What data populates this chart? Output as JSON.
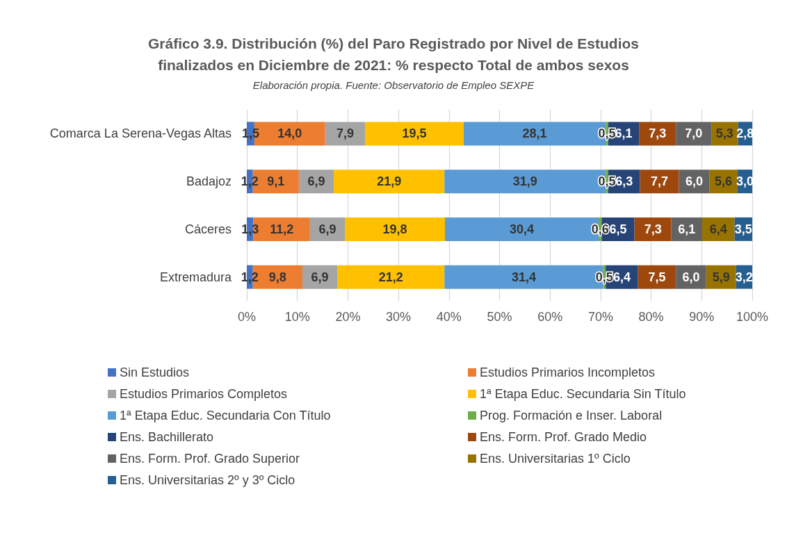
{
  "chart_data": {
    "type": "bar",
    "orientation": "horizontal",
    "stacked": true,
    "title": "Gráfico 3.9. Distribución (%) del Paro Registrado por Nivel de Estudios\nfinalizados en Diciembre de 2021: % respecto Total de ambos sexos",
    "subtitle": "Elaboración propia. Fuente: Observatorio de Empleo SEXPE",
    "categories": [
      "Comarca La Serena-Vegas Altas",
      "Badajoz",
      "Cáceres",
      "Extremadura"
    ],
    "series": [
      {
        "name": "Sin Estudios",
        "color": "#4472c4",
        "values": [
          1.5,
          1.2,
          1.3,
          1.2
        ],
        "value_labels": [
          "1,5",
          "1,2",
          "1,3",
          "1,2"
        ]
      },
      {
        "name": "Estudios Primarios Incompletos",
        "color": "#ed7d31",
        "values": [
          14.0,
          9.1,
          11.2,
          9.8
        ],
        "value_labels": [
          "14,0",
          "9,1",
          "11,2",
          "9,8"
        ]
      },
      {
        "name": "Estudios Primarios Completos",
        "color": "#a5a5a5",
        "values": [
          7.9,
          6.9,
          6.9,
          6.9
        ],
        "value_labels": [
          "7,9",
          "6,9",
          "6,9",
          "6,9"
        ]
      },
      {
        "name": "1ª Etapa Educ. Secundaria Sin Título",
        "color": "#ffc000",
        "values": [
          19.5,
          21.9,
          19.8,
          21.2
        ],
        "value_labels": [
          "19,5",
          "21,9",
          "19,8",
          "21,2"
        ]
      },
      {
        "name": "1ª Etapa Educ. Secundaria Con Título",
        "color": "#5b9bd5",
        "values": [
          28.1,
          31.9,
          30.4,
          31.4
        ],
        "value_labels": [
          "28,1",
          "31,9",
          "30,4",
          "31,4"
        ]
      },
      {
        "name": "Prog. Formación e Inser. Laboral",
        "color": "#70ad47",
        "values": [
          0.5,
          0.5,
          0.6,
          0.5
        ],
        "value_labels": [
          "0,5",
          "0,5",
          "0,6",
          "0,5"
        ]
      },
      {
        "name": "Ens. Bachillerato",
        "color": "#264478",
        "values": [
          6.1,
          6.3,
          6.5,
          6.4
        ],
        "value_labels": [
          "6,1",
          "6,3",
          "6,5",
          "6,4"
        ]
      },
      {
        "name": "Ens. Form. Prof. Grado Medio",
        "color": "#9e480e",
        "values": [
          7.3,
          7.7,
          7.3,
          7.5
        ],
        "value_labels": [
          "7,3",
          "7,7",
          "7,3",
          "7,5"
        ]
      },
      {
        "name": "Ens. Form. Prof. Grado Superior",
        "color": "#636363",
        "values": [
          7.0,
          6.0,
          6.1,
          6.0
        ],
        "value_labels": [
          "7,0",
          "6,0",
          "6,1",
          "6,0"
        ]
      },
      {
        "name": "Ens. Universitarias 1º Ciclo",
        "color": "#997300",
        "values": [
          5.3,
          5.6,
          6.4,
          5.9
        ],
        "value_labels": [
          "5,3",
          "5,6",
          "6,4",
          "5,9"
        ]
      },
      {
        "name": "Ens. Universitarias 2º y 3º Ciclo",
        "color": "#255e91",
        "values": [
          2.8,
          3.0,
          3.5,
          3.2
        ],
        "value_labels": [
          "2,8",
          "3,0",
          "3,5",
          "3,2"
        ]
      }
    ],
    "xlim": [
      0,
      100
    ],
    "xticks": [
      {
        "value": 0,
        "label": "0%"
      },
      {
        "value": 10,
        "label": "10%"
      },
      {
        "value": 20,
        "label": "20%"
      },
      {
        "value": 30,
        "label": "30%"
      },
      {
        "value": 40,
        "label": "40%"
      },
      {
        "value": 50,
        "label": "50%"
      },
      {
        "value": 60,
        "label": "60%"
      },
      {
        "value": 70,
        "label": "70%"
      },
      {
        "value": 80,
        "label": "80%"
      },
      {
        "value": 90,
        "label": "90%"
      },
      {
        "value": 100,
        "label": "100%"
      }
    ],
    "grid": "x",
    "legend": "bottom"
  }
}
